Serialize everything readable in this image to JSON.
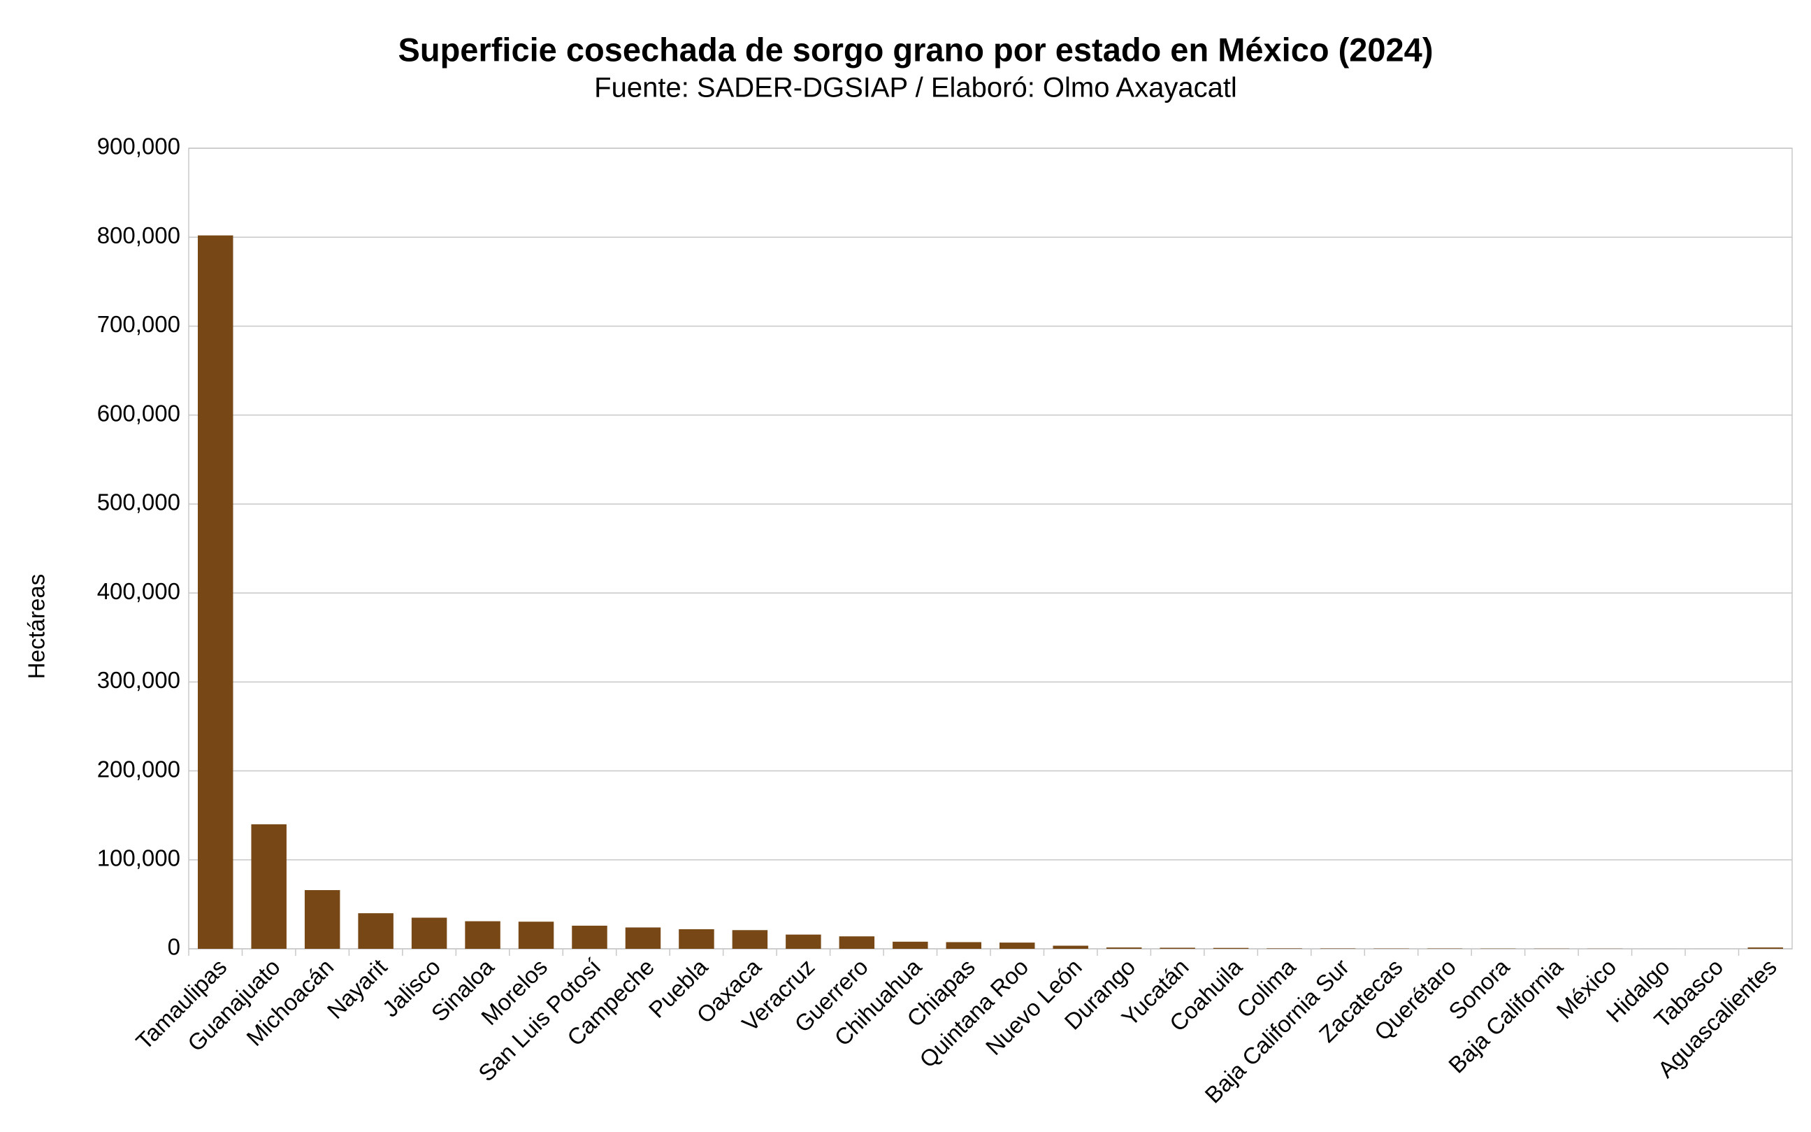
{
  "chart_data": {
    "type": "bar",
    "title": "Superficie cosechada de sorgo grano por estado en México (2024)",
    "subtitle": "Fuente: SADER-DGSIAP / Elaboró: Olmo Axayacatl",
    "y_label": "Hectáreas",
    "categories": [
      "Tamaulipas",
      "Guanajuato",
      "Michoacán",
      "Nayarit",
      "Jalisco",
      "Sinaloa",
      "Morelos",
      "San Luis Potosí",
      "Campeche",
      "Puebla",
      "Oaxaca",
      "Veracruz",
      "Guerrero",
      "Chihuahua",
      "Chiapas",
      "Quintana Roo",
      "Nuevo León",
      "Durango",
      "Yucatán",
      "Coahuila",
      "Colima",
      "Baja California Sur",
      "Zacatecas",
      "Querétaro",
      "Sonora",
      "Baja California",
      "México",
      "Hidalgo",
      "Tabasco",
      "Aguascalientes"
    ],
    "values": [
      802000,
      140000,
      66000,
      40000,
      35000,
      31000,
      30500,
      26000,
      24000,
      22000,
      21000,
      16000,
      14000,
      8000,
      7500,
      7000,
      3500,
      1500,
      1200,
      1000,
      500,
      400,
      300,
      300,
      250,
      200,
      150,
      20,
      20,
      1500
    ],
    "color": "#774715",
    "ylim": [
      0,
      900000
    ],
    "yticks": [
      0,
      {
        "value": 100000,
        "label": "100,000"
      },
      {
        "value": 200000,
        "label": "200,000"
      },
      {
        "value": 300000,
        "label": "300,000"
      },
      {
        "value": 400000,
        "label": "400,000"
      },
      {
        "value": 500000,
        "label": "500,000"
      },
      {
        "value": 600000,
        "label": "600,000"
      },
      {
        "value": 700000,
        "label": "700,000"
      },
      {
        "value": 800000,
        "label": "800,000"
      },
      {
        "value": 900000,
        "label": "900,000"
      }
    ],
    "grid": true
  }
}
